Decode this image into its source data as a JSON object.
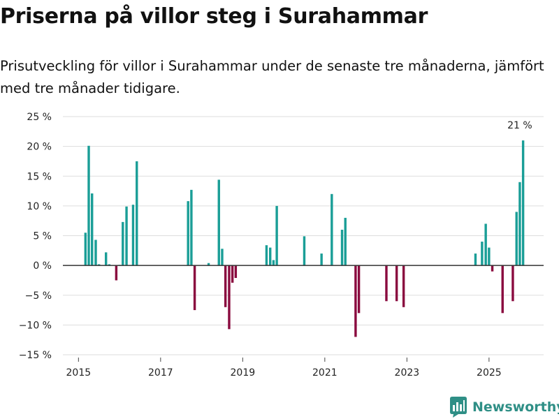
{
  "title": "Priserna på villor steg i Surahammar",
  "subtitle": "Prisutveckling för villor i Surahammar under de senaste tre månaderna, jämfört med tre månader tidigare.",
  "brand": "Newsworthy",
  "colors": {
    "positive": "#1a9e97",
    "negative": "#8a0b3f",
    "grid": "#dddddd",
    "zero": "#333333",
    "brand": "#2f8f86"
  },
  "chart_data": {
    "type": "bar",
    "title": "Priserna på villor steg i Surahammar",
    "xlabel": "",
    "ylabel": "",
    "ylim": [
      -15,
      25
    ],
    "yticks": [
      -15,
      -10,
      -5,
      0,
      5,
      10,
      15,
      20,
      25
    ],
    "ytick_labels": [
      "−15 %",
      "−10 %",
      "−5 %",
      "0 %",
      "5 %",
      "10 %",
      "15 %",
      "20 %",
      "25 %"
    ],
    "xlim": [
      2014.62,
      2026.33
    ],
    "xticks": [
      2015,
      2017,
      2019,
      2021,
      2023,
      2025
    ],
    "xtick_labels": [
      "2015",
      "2017",
      "2019",
      "2021",
      "2023",
      "2025"
    ],
    "annotation": {
      "x": 2025.75,
      "y": 21,
      "text": "21 %"
    },
    "bar_width": 0.058,
    "x": [
      2015.17,
      2015.25,
      2015.33,
      2015.42,
      2015.5,
      2015.67,
      2015.75,
      2015.92,
      2016.0,
      2016.08,
      2016.17,
      2016.33,
      2016.42,
      2017.67,
      2017.75,
      2017.83,
      2018.17,
      2018.42,
      2018.5,
      2018.58,
      2018.67,
      2018.75,
      2018.83,
      2019.58,
      2019.67,
      2019.75,
      2019.83,
      2020.5,
      2020.92,
      2021.17,
      2021.42,
      2021.5,
      2021.75,
      2021.83,
      2022.5,
      2022.75,
      2022.92,
      2024.67,
      2024.83,
      2024.92,
      2025.0,
      2025.08,
      2025.33,
      2025.58,
      2025.67,
      2025.75,
      2025.83
    ],
    "values": [
      5.5,
      20.1,
      12.1,
      4.3,
      0.2,
      2.2,
      0.2,
      -2.5,
      0.1,
      7.3,
      9.9,
      10.2,
      17.5,
      10.8,
      12.7,
      -7.5,
      0.4,
      14.4,
      2.8,
      -7.0,
      -10.7,
      -2.9,
      -2.1,
      3.4,
      3.0,
      0.9,
      10.0,
      4.9,
      2.0,
      12.0,
      6.0,
      8.0,
      -12.0,
      -8.0,
      -6.0,
      -6.0,
      -7.0,
      2.0,
      4.0,
      7.0,
      3.0,
      -1.0,
      -8.0,
      -6.0,
      9.0,
      14.0,
      21.0
    ]
  }
}
